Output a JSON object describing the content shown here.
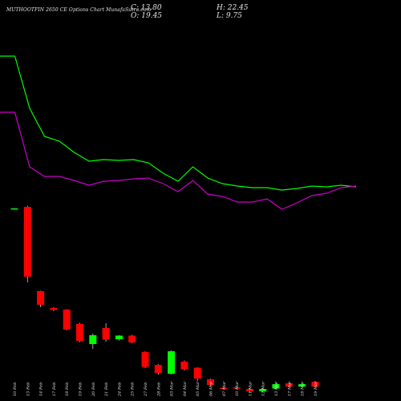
{
  "header": {
    "title": "MUTHOOTFIN 2650 CE Options Chart MunafaSutra.com",
    "close_label": "C: 13.80",
    "open_label": "O: 19.45",
    "high_label": "H: 22.45",
    "low_label": "L: 9.75"
  },
  "colors": {
    "background": "#000000",
    "up": "#00ff00",
    "down": "#ff0000",
    "line1": "#00ff00",
    "line2": "#cc00cc",
    "text": "#e8e8e8"
  },
  "chart_data": {
    "type": "candlestick",
    "title": "MUTHOOTFIN 2650 CE Options Chart MunafaSutra.com",
    "categories": [
      "10 Feb",
      "13 Feb",
      "14 Feb",
      "17 Feb",
      "18 Feb",
      "19 Feb",
      "20 Feb",
      "21 Feb",
      "24 Feb",
      "25 Feb",
      "27 Feb",
      "28 Feb",
      "03 Mar",
      "04 Mar",
      "05 Mar",
      "06 Mar",
      "07 Mar",
      "10 Mar",
      "11 Mar",
      "12 Mar",
      "13 Mar",
      "17 Mar",
      "18 Mar",
      "19 Mar"
    ],
    "candles": [
      {
        "open": 180.0,
        "high": 180.5,
        "low": 179.5,
        "close": 180.2
      },
      {
        "open": 182.0,
        "high": 183.5,
        "low": 88.0,
        "close": 95.0
      },
      {
        "open": 77.0,
        "high": 77.5,
        "low": 57.0,
        "close": 60.0
      },
      {
        "open": 56.0,
        "high": 57.0,
        "low": 52.0,
        "close": 53.5
      },
      {
        "open": 54.0,
        "high": 54.5,
        "low": 28.0,
        "close": 29.0
      },
      {
        "open": 36.0,
        "high": 37.5,
        "low": 13.5,
        "close": 15.0
      },
      {
        "open": 11.0,
        "high": 24.0,
        "low": 5.0,
        "close": 22.0
      },
      {
        "open": 31.0,
        "high": 37.0,
        "low": 14.0,
        "close": 16.5
      },
      {
        "open": 17.0,
        "high": 22.0,
        "low": 15.5,
        "close": 21.5
      },
      {
        "open": 21.5,
        "high": 22.5,
        "low": 12.0,
        "close": 13.0
      },
      {
        "open": 1.0,
        "high": 2.0,
        "low": -19.0,
        "close": -17.5
      },
      {
        "open": -15.0,
        "high": -14.0,
        "low": -27.0,
        "close": -25.0
      },
      {
        "open": -26.0,
        "high": 3.0,
        "low": -27.0,
        "close": 2.0
      },
      {
        "open": -11.0,
        "high": -9.5,
        "low": -22.0,
        "close": -20.5
      },
      {
        "open": -18.5,
        "high": -18.0,
        "low": -35.0,
        "close": -32.0
      },
      {
        "open": -33.0,
        "high": -32.0,
        "low": -41.0,
        "close": -40.0
      },
      {
        "open": -43.5,
        "high": -42.5,
        "low": -45.5,
        "close": -44.5
      },
      {
        "open": -43.0,
        "high": -42.0,
        "low": -45.0,
        "close": -44.0
      },
      {
        "open": -45.0,
        "high": -44.0,
        "low": -49.0,
        "close": -48.0
      },
      {
        "open": -48.0,
        "high": -44.0,
        "low": -49.0,
        "close": -45.0
      },
      {
        "open": -44.5,
        "high": -37.0,
        "low": -45.5,
        "close": -39.0
      },
      {
        "open": -38.0,
        "high": -37.0,
        "low": -43.0,
        "close": -42.0
      },
      {
        "open": -42.0,
        "high": -38.0,
        "low": -43.0,
        "close": -39.0
      },
      {
        "open": -36.0,
        "high": -35.0,
        "low": -43.0,
        "close": -42.0
      }
    ],
    "ma_series": [
      {
        "color": "#00ff00",
        "values": [
          300,
          300,
          235,
          200,
          194,
          180,
          169,
          171,
          170,
          171,
          167,
          154,
          144,
          162,
          148,
          141,
          138,
          136,
          136,
          133,
          135,
          138,
          137,
          139,
          137
        ]
      },
      {
        "color": "#cc00cc",
        "values": [
          230,
          230,
          162,
          150,
          150,
          145,
          139,
          144,
          145,
          147,
          148,
          141,
          131,
          145,
          128,
          125,
          118,
          118,
          122,
          109,
          117,
          126,
          129,
          136,
          138
        ]
      }
    ],
    "xlabel": "",
    "ylabel": ""
  }
}
